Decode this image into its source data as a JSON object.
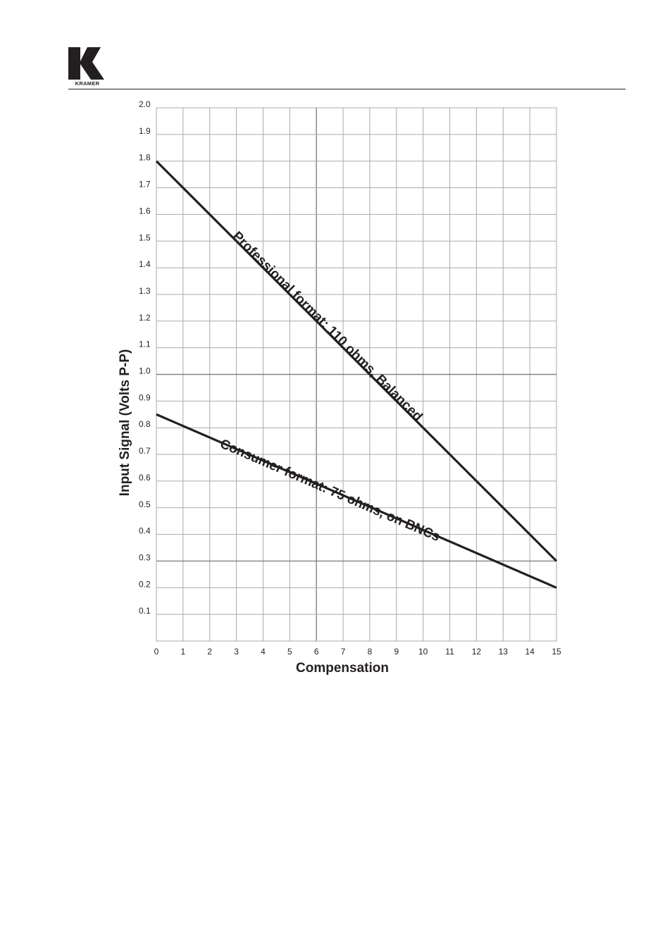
{
  "header": {
    "logo_text": "KRAMER"
  },
  "chart_data": {
    "type": "line",
    "title": "",
    "xlabel": "Compensation",
    "ylabel": "Input Signal (Volts P-P)",
    "xlim": [
      0,
      15
    ],
    "ylim": [
      0,
      2.0
    ],
    "x_ticks": [
      "0",
      "1",
      "2",
      "3",
      "4",
      "5",
      "6",
      "7",
      "8",
      "9",
      "10",
      "11",
      "12",
      "13",
      "14",
      "15"
    ],
    "y_ticks": [
      "0.1",
      "0.2",
      "0.3",
      "0.4",
      "0.5",
      "0.6",
      "0.7",
      "0.8",
      "0.9",
      "1.0",
      "1.1",
      "1.2",
      "1.3",
      "1.4",
      "1.5",
      "1.6",
      "1.7",
      "1.8",
      "1.9",
      "2.0"
    ],
    "grid": true,
    "series": [
      {
        "name": "Professional format: 110 ohms, Balanced",
        "x": [
          0,
          15
        ],
        "y": [
          1.8,
          0.3
        ]
      },
      {
        "name": "Consumer format: 75 ohms, on BNCs",
        "x": [
          0,
          15
        ],
        "y": [
          0.85,
          0.2
        ]
      }
    ],
    "colors": {
      "line": "#231f20",
      "grid": "#a7a9ac",
      "grid_major": "#808285"
    }
  }
}
